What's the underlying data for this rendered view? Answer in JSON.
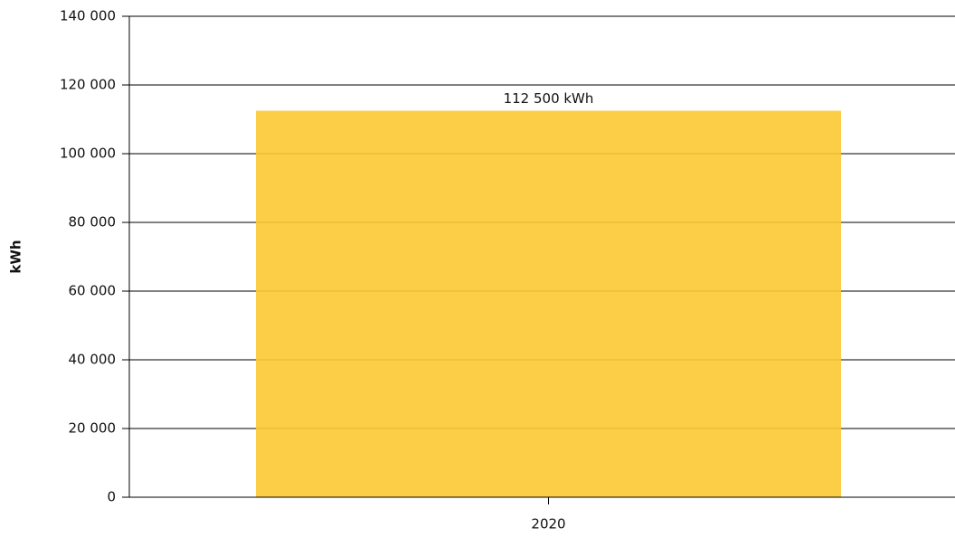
{
  "chart_data": {
    "type": "bar",
    "y_label": "kWh",
    "categories": [
      "2020"
    ],
    "values": [
      112500
    ],
    "value_labels": [
      "112 500 kWh"
    ],
    "color": "#fcc933",
    "ylim": [
      0,
      140000
    ],
    "yticks": [
      0,
      {
        "value": 20000,
        "label": "20 000"
      },
      {
        "value": 40000,
        "label": "40 000"
      },
      {
        "value": 60000,
        "label": "60 000"
      },
      {
        "value": 80000,
        "label": "80 000"
      },
      {
        "value": 100000,
        "label": "100 000"
      },
      {
        "value": 120000,
        "label": "120 000"
      },
      {
        "value": 140000,
        "label": "140 000"
      }
    ],
    "grid": true
  }
}
